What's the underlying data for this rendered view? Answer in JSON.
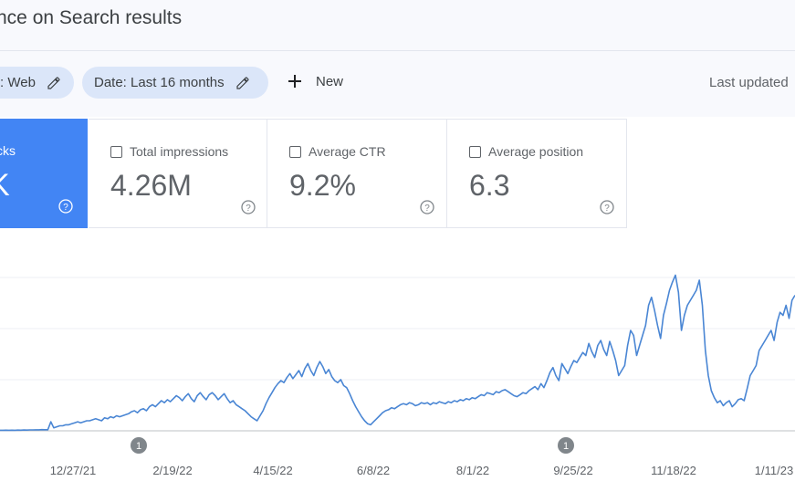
{
  "header": {
    "title": "nce on Search results"
  },
  "filters": {
    "type_chip": ": Web",
    "date_chip": "Date: Last 16 months",
    "new_label": "New",
    "last_updated": "Last updated"
  },
  "metrics": {
    "clicks": {
      "label": "cks",
      "value": "K"
    },
    "impressions": {
      "label": "Total impressions",
      "value": "4.26M"
    },
    "ctr": {
      "label": "Average CTR",
      "value": "9.2%"
    },
    "position": {
      "label": "Average position",
      "value": "6.3"
    }
  },
  "colors": {
    "accent": "#4285f4",
    "chip_bg": "#dbe6f9",
    "line": "#4a86d4"
  },
  "chart_data": {
    "type": "line",
    "x_tick_labels": [
      "12/27/21",
      "2/19/22",
      "4/15/22",
      "6/8/22",
      "8/1/22",
      "9/25/22",
      "11/18/22",
      "1/11/23"
    ],
    "annotations": [
      {
        "label": "1",
        "near": "2/19/22"
      },
      {
        "label": "1",
        "near": "9/25/22"
      }
    ],
    "grid": true,
    "series": [
      {
        "values": [
          0.5,
          0.5,
          0.6,
          0.5,
          0.6,
          0.5,
          0.7,
          0.6,
          0.8,
          0.7,
          0.9,
          0.9,
          1.0,
          1.0,
          1.2,
          1.1,
          1.1,
          9,
          3,
          4,
          5,
          5,
          6,
          6,
          7,
          8,
          9,
          8,
          9,
          10,
          10,
          11,
          12,
          11,
          10,
          13,
          12,
          14,
          13,
          15,
          14,
          15,
          16,
          17,
          19,
          20,
          18,
          21,
          22,
          20,
          24,
          26,
          24,
          27,
          30,
          28,
          31,
          29,
          32,
          35,
          33,
          30,
          34,
          37,
          32,
          29,
          35,
          38,
          34,
          31,
          36,
          38,
          35,
          31,
          34,
          37,
          32,
          28,
          30,
          26,
          24,
          22,
          20,
          17,
          14,
          12,
          10,
          15,
          20,
          27,
          33,
          38,
          43,
          47,
          50,
          48,
          53,
          57,
          52,
          56,
          60,
          54,
          62,
          67,
          60,
          55,
          63,
          69,
          64,
          57,
          61,
          54,
          50,
          48,
          51,
          45,
          43,
          37,
          30,
          24,
          19,
          14,
          10,
          7,
          6,
          9,
          12,
          15,
          18,
          20,
          21,
          23,
          22,
          24,
          26,
          27,
          26,
          28,
          27,
          25,
          26,
          28,
          27,
          28,
          26,
          28,
          27,
          29,
          28,
          27,
          29,
          28,
          30,
          29,
          31,
          30,
          32,
          31,
          33,
          32,
          34,
          36,
          35,
          38,
          37,
          36,
          39,
          38,
          40,
          41,
          39,
          37,
          35,
          34,
          36,
          38,
          37,
          40,
          42,
          44,
          41,
          47,
          43,
          50,
          58,
          63,
          55,
          50,
          67,
          62,
          57,
          64,
          70,
          68,
          73,
          78,
          75,
          87,
          79,
          73,
          85,
          90,
          81,
          75,
          89,
          80,
          70,
          55,
          60,
          65,
          85,
          100,
          95,
          75,
          85,
          95,
          105,
          125,
          133,
          120,
          105,
          92,
          115,
          127,
          140,
          148,
          155,
          138,
          100,
          115,
          125,
          130,
          135,
          140,
          150,
          125,
          80,
          55,
          40,
          33,
          28,
          30,
          25,
          28,
          30,
          24,
          27,
          31,
          32,
          30,
          42,
          55,
          60,
          65,
          80,
          85,
          90,
          95,
          100,
          90,
          108,
          118,
          115,
          125,
          112,
          130,
          135
        ]
      }
    ]
  }
}
